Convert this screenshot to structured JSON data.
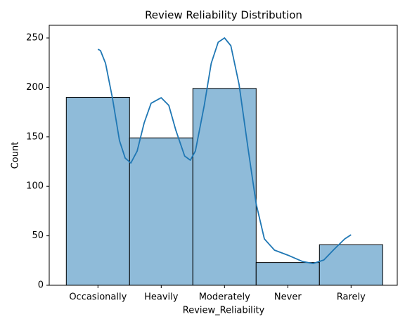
{
  "chart_data": {
    "type": "bar",
    "title": "Review Reliability Distribution",
    "x_label": "Review_Reliability",
    "y_label": "Count",
    "categories": [
      "Occasionally",
      "Heavily",
      "Moderately",
      "Never",
      "Rarely"
    ],
    "values": [
      190,
      149,
      199,
      23,
      41
    ],
    "color": "#8fbbd9",
    "edge_color": "#000000",
    "xlim": [
      -0.77,
      4.73
    ],
    "ylim": [
      0,
      262.8
    ],
    "yticks": [
      0,
      50,
      100,
      150,
      200,
      250
    ],
    "grid": false,
    "kde": {
      "color": "#1f77b4",
      "x": [
        0,
        0.04,
        0.12,
        0.23,
        0.34,
        0.43,
        0.52,
        0.62,
        0.73,
        0.84,
        1.0,
        1.12,
        1.23,
        1.37,
        1.46,
        1.54,
        1.68,
        1.79,
        1.9,
        2.0,
        2.1,
        2.23,
        2.37,
        2.5,
        2.63,
        2.79,
        3.0,
        3.23,
        3.4,
        3.57,
        3.73,
        3.9,
        4.0
      ],
      "y": [
        238.6,
        237.2,
        224.4,
        188.9,
        146.3,
        128.6,
        123.6,
        135.7,
        164.1,
        184.0,
        189.6,
        181.8,
        156.9,
        130.7,
        126.4,
        135.7,
        181.8,
        224.4,
        245.7,
        250,
        242.2,
        203.1,
        139.2,
        82.4,
        46.9,
        35.5,
        30.5,
        24.1,
        22.0,
        25.6,
        36.2,
        46.9,
        51.1
      ]
    }
  }
}
